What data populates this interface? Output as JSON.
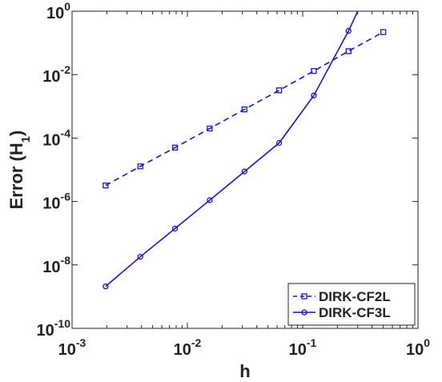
{
  "chart_data": {
    "type": "line",
    "xscale": "log",
    "yscale": "log",
    "xlim": [
      0.001,
      1
    ],
    "ylim": [
      1e-10,
      1
    ],
    "grid": false,
    "legend_position": "bottom-right",
    "xlabel": "h",
    "ylabel_main": "Error (H",
    "ylabel_sub": "1",
    "ylabel_close": ")",
    "x_ticks": [
      {
        "value": 0.001,
        "base": "10",
        "exp": "-3"
      },
      {
        "value": 0.01,
        "base": "10",
        "exp": "-2"
      },
      {
        "value": 0.1,
        "base": "10",
        "exp": "-1"
      },
      {
        "value": 1,
        "base": "10",
        "exp": "0"
      }
    ],
    "y_ticks": [
      {
        "value": 1e-10,
        "base": "10",
        "exp": "-10"
      },
      {
        "value": 1e-08,
        "base": "10",
        "exp": "-8"
      },
      {
        "value": 1e-06,
        "base": "10",
        "exp": "-6"
      },
      {
        "value": 0.0001,
        "base": "10",
        "exp": "-4"
      },
      {
        "value": 0.01,
        "base": "10",
        "exp": "-2"
      },
      {
        "value": 1,
        "base": "10",
        "exp": "0"
      }
    ],
    "series": [
      {
        "name": "DIRK-CF2L",
        "color": "#1414d2",
        "dashed": true,
        "marker": "square",
        "x": [
          0.001953,
          0.003906,
          0.007813,
          0.015625,
          0.03125,
          0.0625,
          0.125,
          0.25,
          0.5
        ],
        "y": [
          3.2e-06,
          1.28e-05,
          5e-05,
          0.0002,
          0.0008,
          0.0032,
          0.013,
          0.055,
          0.22
        ]
      },
      {
        "name": "DIRK-CF3L",
        "color": "#1414d2",
        "dashed": false,
        "marker": "circle",
        "x": [
          0.001953,
          0.003906,
          0.007813,
          0.015625,
          0.03125,
          0.0625,
          0.125,
          0.25,
          0.3
        ],
        "y": [
          2.1e-09,
          1.8e-08,
          1.4e-07,
          1.1e-06,
          8.8e-06,
          7e-05,
          0.0022,
          0.24,
          1.0
        ]
      }
    ],
    "marker_counts": [
      9,
      8
    ]
  }
}
